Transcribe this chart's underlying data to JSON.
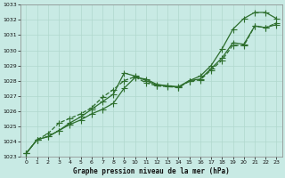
{
  "xlabel": "Graphe pression niveau de la mer (hPa)",
  "xlim": [
    -0.5,
    23.5
  ],
  "ylim": [
    1023,
    1033
  ],
  "yticks": [
    1023,
    1024,
    1025,
    1026,
    1027,
    1028,
    1029,
    1030,
    1031,
    1032,
    1033
  ],
  "xticks": [
    0,
    1,
    2,
    3,
    4,
    5,
    6,
    7,
    8,
    9,
    10,
    11,
    12,
    13,
    14,
    15,
    16,
    17,
    18,
    19,
    20,
    21,
    22,
    23
  ],
  "bg_color": "#c8eae4",
  "grid_color_major": "#b0d8ce",
  "grid_color_minor": "#c0e2da",
  "line_color": "#2d6e2d",
  "line1_x": [
    0,
    1,
    2,
    3,
    4,
    5,
    6,
    7,
    8,
    9,
    10,
    11,
    12,
    13,
    14,
    15,
    16,
    17,
    18,
    19,
    20,
    21,
    22,
    23
  ],
  "line1_y": [
    1023.2,
    1024.1,
    1024.3,
    1024.7,
    1025.2,
    1025.6,
    1026.1,
    1026.6,
    1027.1,
    1028.5,
    1028.3,
    1028.0,
    1027.7,
    1027.65,
    1027.55,
    1028.0,
    1028.3,
    1029.0,
    1030.1,
    1031.4,
    1032.1,
    1032.5,
    1032.5,
    1032.1
  ],
  "line2_x": [
    0,
    1,
    2,
    3,
    4,
    5,
    6,
    7,
    8,
    9,
    10,
    11,
    12,
    13,
    14,
    15,
    16,
    17,
    18,
    19,
    20,
    21,
    22,
    23
  ],
  "line2_y": [
    1023.2,
    1024.1,
    1024.3,
    1024.7,
    1025.1,
    1025.4,
    1025.8,
    1026.1,
    1026.5,
    1027.5,
    1028.2,
    1028.1,
    1027.75,
    1027.65,
    1027.6,
    1028.0,
    1028.1,
    1028.8,
    1029.5,
    1030.5,
    1030.4,
    1031.6,
    1031.5,
    1031.7
  ],
  "line3_x": [
    0,
    1,
    2,
    3,
    4,
    5,
    6,
    7,
    8,
    9,
    10,
    11,
    12,
    13,
    14,
    15,
    16,
    17,
    18,
    19,
    20,
    21,
    22,
    23
  ],
  "line3_y": [
    1023.2,
    1024.1,
    1024.5,
    1025.2,
    1025.5,
    1025.8,
    1026.2,
    1026.9,
    1027.4,
    1028.0,
    1028.25,
    1027.85,
    1027.65,
    1027.6,
    1027.55,
    1027.95,
    1028.05,
    1028.7,
    1029.35,
    1030.35,
    1030.3,
    1031.6,
    1031.5,
    1031.8
  ],
  "lw": 0.9,
  "ms": 2.8
}
